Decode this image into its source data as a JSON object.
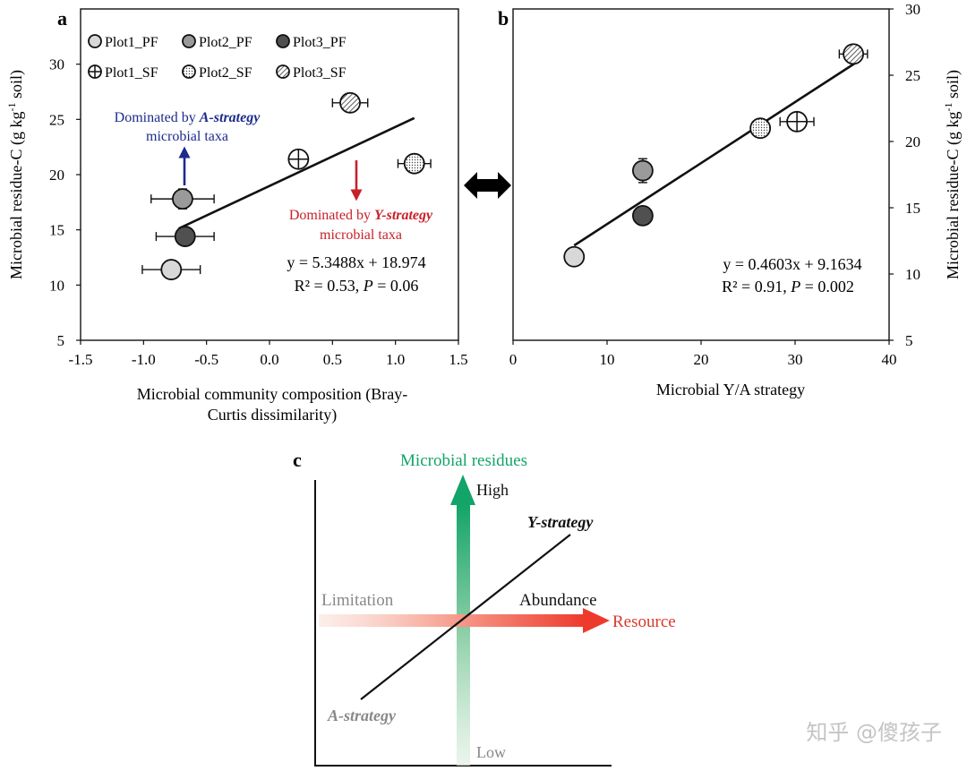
{
  "watermark": "知乎 @傻孩子",
  "chart_data": [
    {
      "panel": "a",
      "type": "scatter",
      "xlabel": [
        "Microbial community composition (Bray-",
        "Curtis dissimilarity)"
      ],
      "ylabel": "Microbial residue-C (g kg-1 soil)",
      "ylabel_parts": [
        "Microbial residue-C (g kg",
        "-1",
        " soil)"
      ],
      "xlim": [
        -1.5,
        1.5
      ],
      "ylim": [
        5,
        35
      ],
      "xticks": [
        -1.5,
        -1.0,
        -0.5,
        0.0,
        0.5,
        1.0,
        1.5
      ],
      "xtick_labels": [
        "-1.5",
        "-1.0",
        "-0.5",
        "0.0",
        "0.5",
        "1.0",
        "1.5"
      ],
      "yticks": [
        5,
        10,
        15,
        20,
        25,
        30
      ],
      "ytick_labels": [
        "5",
        "10",
        "15",
        "20",
        "25",
        "30"
      ],
      "legend_position": "top-left",
      "legend": [
        {
          "name": "Plot1_PF",
          "style": "light"
        },
        {
          "name": "Plot2_PF",
          "style": "mid"
        },
        {
          "name": "Plot3_PF",
          "style": "dark"
        },
        {
          "name": "Plot1_SF",
          "style": "open"
        },
        {
          "name": "Plot2_SF",
          "style": "dotted"
        },
        {
          "name": "Plot3_SF",
          "style": "hatched"
        }
      ],
      "points": [
        {
          "series": "Plot1_PF",
          "style": "light",
          "x": -0.78,
          "y": 11.4,
          "xerr": 0.23,
          "yerr": 0
        },
        {
          "series": "Plot2_PF",
          "style": "mid",
          "x": -0.69,
          "y": 17.8,
          "xerr": 0.25,
          "yerr": 0.9
        },
        {
          "series": "Plot3_PF",
          "style": "dark",
          "x": -0.67,
          "y": 14.4,
          "xerr": 0.23,
          "yerr": 0.5
        },
        {
          "series": "Plot1_SF",
          "style": "open",
          "x": 0.23,
          "y": 21.4,
          "xerr": 0,
          "yerr": 0.5
        },
        {
          "series": "Plot2_SF",
          "style": "dotted",
          "x": 1.15,
          "y": 21.0,
          "xerr": 0.13,
          "yerr": 0.3
        },
        {
          "series": "Plot3_SF",
          "style": "hatched",
          "x": 0.64,
          "y": 26.5,
          "xerr": 0.14,
          "yerr": 0.4
        }
      ],
      "fit_line": {
        "x": [
          -0.72,
          1.15
        ]
      },
      "equation": "y = 5.3488x + 18.974",
      "stats_prefix": "R² = 0.53, ",
      "stats_p_label": "P",
      "stats_p_value": " = 0.06",
      "annotations": [
        {
          "prefix": "Dominated by ",
          "emph": "A-strategy",
          "line2": "microbial taxa",
          "color": "#1c2b8c"
        },
        {
          "prefix": "Dominated by ",
          "emph": "Y-strategy",
          "line2": "microbial taxa",
          "color": "#c8202a"
        }
      ]
    },
    {
      "panel": "b",
      "type": "scatter",
      "xlabel": "Microbial Y/A strategy",
      "ylabel": "Microbial residue-C (g kg-1 soil)",
      "ylabel_parts": [
        "Microbial residue-C (g kg",
        "-1",
        " soil)"
      ],
      "xlim": [
        0,
        40
      ],
      "ylim": [
        5,
        30
      ],
      "xticks": [
        0,
        10,
        20,
        30,
        40
      ],
      "xtick_labels": [
        "0",
        "10",
        "20",
        "30",
        "40"
      ],
      "yticks": [
        5,
        10,
        15,
        20,
        25,
        30
      ],
      "ytick_labels": [
        "5",
        "10",
        "15",
        "20",
        "25",
        "30"
      ],
      "points": [
        {
          "series": "Plot1_PF",
          "style": "light",
          "x": 6.5,
          "y": 11.3,
          "xerr": 0,
          "yerr": 0
        },
        {
          "series": "Plot2_PF",
          "style": "mid",
          "x": 13.8,
          "y": 17.8,
          "xerr": 0,
          "yerr": 0.9
        },
        {
          "series": "Plot3_PF",
          "style": "dark",
          "x": 13.8,
          "y": 14.4,
          "xerr": 0,
          "yerr": 0
        },
        {
          "series": "Plot1_SF",
          "style": "open",
          "x": 30.2,
          "y": 21.5,
          "xerr": 1.8,
          "yerr": 0
        },
        {
          "series": "Plot2_SF",
          "style": "dotted",
          "x": 26.3,
          "y": 21.0,
          "xerr": 0,
          "yerr": 0
        },
        {
          "series": "Plot3_SF",
          "style": "hatched",
          "x": 36.2,
          "y": 26.6,
          "xerr": 1.5,
          "yerr": 0
        }
      ],
      "fit_line": {
        "x": [
          6.5,
          36.5
        ]
      },
      "equation": "y = 0.4603x + 9.1634",
      "stats_prefix": "R² = 0.91, ",
      "stats_p_label": "P",
      "stats_p_value": " = 0.002"
    },
    {
      "panel": "c",
      "type": "diagram",
      "y_axis_title": "Microbial residues",
      "high_label": "High",
      "low_label": "Low",
      "x_axis_title": "Resource",
      "limitation_label": "Limitation",
      "abundance_label": "Abundance",
      "y_strategy_label": "Y-strategy",
      "a_strategy_label": "A-strategy"
    }
  ]
}
